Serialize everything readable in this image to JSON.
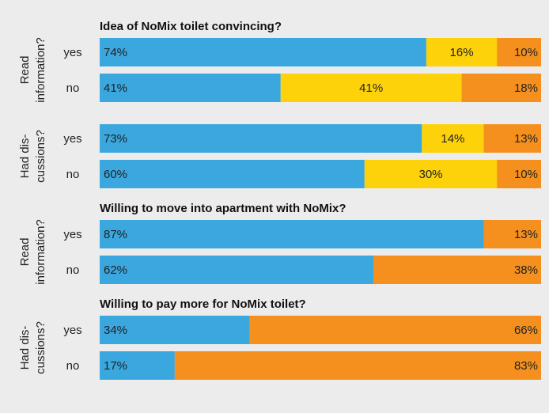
{
  "colors": {
    "blue": "#3aa7df",
    "yellow": "#fdd20a",
    "orange": "#f5901e",
    "background": "#ececec"
  },
  "chart_data": [
    {
      "type": "bar",
      "orientation": "horizontal",
      "stacked": true,
      "normalized": true,
      "title": "Idea of NoMix toilet convincing?",
      "groups": [
        {
          "label_lines": [
            "Read",
            "information?"
          ],
          "categories": [
            "yes",
            "no"
          ],
          "series": [
            {
              "color": "blue",
              "values": [
                74,
                41
              ]
            },
            {
              "color": "yellow",
              "values": [
                16,
                41
              ]
            },
            {
              "color": "orange",
              "values": [
                10,
                18
              ]
            }
          ]
        },
        {
          "label_lines": [
            "Had dis-",
            "cussions?"
          ],
          "categories": [
            "yes",
            "no"
          ],
          "series": [
            {
              "color": "blue",
              "values": [
                73,
                60
              ]
            },
            {
              "color": "yellow",
              "values": [
                14,
                30
              ]
            },
            {
              "color": "orange",
              "values": [
                13,
                10
              ]
            }
          ]
        }
      ],
      "value_suffix": "%",
      "xlim": [
        0,
        100
      ],
      "legend": "none",
      "grid": false
    },
    {
      "type": "bar",
      "orientation": "horizontal",
      "stacked": true,
      "normalized": true,
      "title": "Willing to move into apartment with NoMix?",
      "groups": [
        {
          "label_lines": [
            "Read",
            "information?"
          ],
          "categories": [
            "yes",
            "no"
          ],
          "series": [
            {
              "color": "blue",
              "values": [
                87,
                62
              ]
            },
            {
              "color": "orange",
              "values": [
                13,
                38
              ]
            }
          ]
        }
      ],
      "value_suffix": "%",
      "xlim": [
        0,
        100
      ],
      "legend": "none",
      "grid": false
    },
    {
      "type": "bar",
      "orientation": "horizontal",
      "stacked": true,
      "normalized": true,
      "title": "Willing to pay more for NoMix toilet?",
      "groups": [
        {
          "label_lines": [
            "Had dis-",
            "cussions?"
          ],
          "categories": [
            "yes",
            "no"
          ],
          "series": [
            {
              "color": "blue",
              "values": [
                34,
                17
              ]
            },
            {
              "color": "orange",
              "values": [
                66,
                83
              ]
            }
          ]
        }
      ],
      "value_suffix": "%",
      "xlim": [
        0,
        100
      ],
      "legend": "none",
      "grid": false
    }
  ]
}
